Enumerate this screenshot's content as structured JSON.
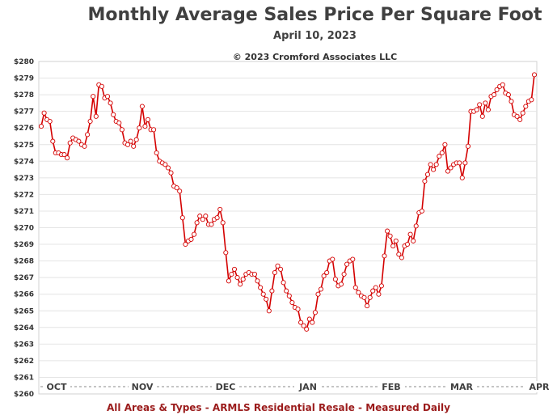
{
  "chart_data": {
    "type": "line",
    "title": "Monthly Average Sales Price Per Square Foot",
    "subtitle": "April 10, 2023",
    "annotation": "© 2023 Cromford Associates LLC",
    "footer": "All Areas & Types - ARMLS Residential Resale - Measured Daily",
    "xlabel": "",
    "ylabel": "",
    "ylim": [
      260,
      280
    ],
    "y_ticks": [
      "$260",
      "$261",
      "$262",
      "$263",
      "$264",
      "$265",
      "$266",
      "$267",
      "$268",
      "$269",
      "$270",
      "$271",
      "$272",
      "$273",
      "$274",
      "$275",
      "$276",
      "$277",
      "$278",
      "$279",
      "$280"
    ],
    "x_ticks": [
      "OCT",
      "NOV",
      "DEC",
      "JAN",
      "FEB",
      "MAR",
      "APR"
    ],
    "grid": "horizontal",
    "line_color": "#d40000",
    "marker_color": "#ffffff",
    "series": [
      {
        "values": [
          276.1,
          276.9,
          276.5,
          276.4,
          275.2,
          274.5,
          274.5,
          274.4,
          274.4,
          274.2,
          275.1,
          275.4,
          275.3,
          275.2,
          275.0,
          274.9,
          275.6,
          276.4,
          277.9,
          276.7,
          278.6,
          278.5,
          277.8,
          277.9,
          277.5,
          276.8,
          276.4,
          276.3,
          275.9,
          275.1,
          275.0,
          275.2,
          274.9,
          275.3,
          276.0,
          277.3,
          276.1,
          276.5,
          275.9,
          275.9,
          274.5,
          274.0,
          273.9,
          273.8,
          273.6,
          273.3,
          272.5,
          272.4,
          272.2,
          270.6,
          269.0,
          269.2,
          269.3,
          269.6,
          270.3,
          270.7,
          270.5,
          270.7,
          270.2,
          270.2,
          270.5,
          270.6,
          271.1,
          270.3,
          268.5,
          266.8,
          267.2,
          267.5,
          267.0,
          266.6,
          266.9,
          267.2,
          267.3,
          267.2,
          267.2,
          266.8,
          266.4,
          266.0,
          265.7,
          265.0,
          266.2,
          267.3,
          267.7,
          267.5,
          266.7,
          266.2,
          265.9,
          265.5,
          265.2,
          265.1,
          264.3,
          264.1,
          263.9,
          264.5,
          264.3,
          264.9,
          266.0,
          266.3,
          267.1,
          267.3,
          268.0,
          268.1,
          266.9,
          266.5,
          266.6,
          267.2,
          267.8,
          268.0,
          268.1,
          266.4,
          266.1,
          265.9,
          265.8,
          265.3,
          265.8,
          266.2,
          266.4,
          266.0,
          266.5,
          268.3,
          269.8,
          269.5,
          268.9,
          269.2,
          268.4,
          268.2,
          268.9,
          269.0,
          269.6,
          269.2,
          270.1,
          270.9,
          271.0,
          272.8,
          273.2,
          273.8,
          273.5,
          273.8,
          274.3,
          274.5,
          275.0,
          273.4,
          273.6,
          273.8,
          273.9,
          273.9,
          273.0,
          273.9,
          274.9,
          277.0,
          277.0,
          277.1,
          277.4,
          276.7,
          277.5,
          277.1,
          277.9,
          278.0,
          278.3,
          278.5,
          278.6,
          278.1,
          278.0,
          277.6,
          276.8,
          276.7,
          276.5,
          276.9,
          277.3,
          277.6,
          277.7,
          279.2
        ]
      }
    ]
  }
}
